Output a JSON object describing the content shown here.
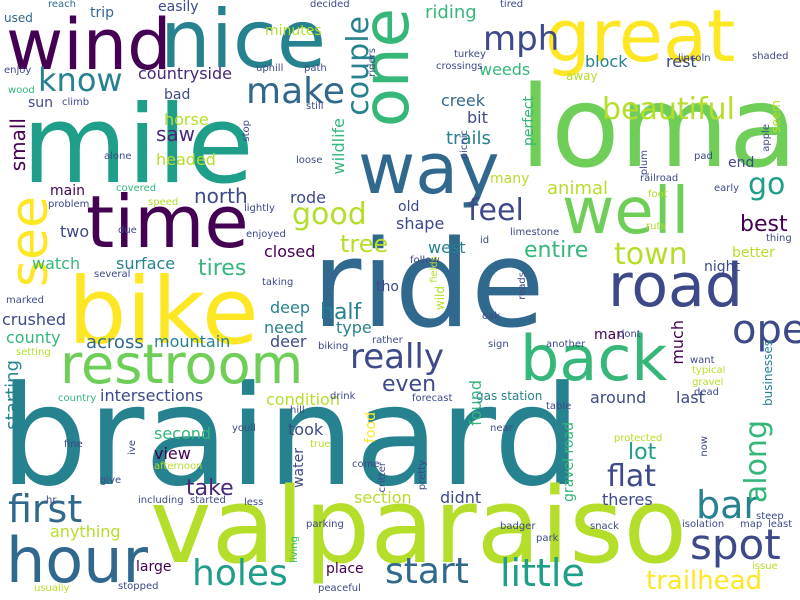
{
  "palette": [
    "#440154",
    "#482878",
    "#3e4989",
    "#31688e",
    "#26828e",
    "#1f9e89",
    "#35b779",
    "#6ece58",
    "#b5de2b",
    "#fde725"
  ],
  "words": [
    {
      "text": "brainard",
      "color": "#26828e"
    },
    {
      "text": "ride",
      "color": "#31688e"
    },
    {
      "text": "mile",
      "color": "#1f9e89"
    },
    {
      "text": "loma",
      "color": "#6ece58"
    },
    {
      "text": "valparaiso",
      "color": "#b5de2b"
    },
    {
      "text": "bike",
      "color": "#fde725"
    },
    {
      "text": "wind",
      "color": "#440154"
    },
    {
      "text": "nice",
      "color": "#26828e"
    },
    {
      "text": "great",
      "color": "#fde725"
    },
    {
      "text": "one",
      "color": "#35b779"
    },
    {
      "text": "time",
      "color": "#440154"
    },
    {
      "text": "well",
      "color": "#6ece58"
    },
    {
      "text": "way",
      "color": "#31688e"
    },
    {
      "text": "road",
      "color": "#3e4989"
    },
    {
      "text": "back",
      "color": "#35b779"
    },
    {
      "text": "restroom",
      "color": "#6ece58"
    },
    {
      "text": "hour",
      "color": "#31688e"
    },
    {
      "text": "see",
      "color": "#fde725"
    },
    {
      "text": "spot",
      "color": "#3e4989"
    },
    {
      "text": "open",
      "color": "#3e4989"
    },
    {
      "text": "bar",
      "color": "#26828e"
    },
    {
      "text": "first",
      "color": "#31688e"
    },
    {
      "text": "little",
      "color": "#1f9e89"
    },
    {
      "text": "start",
      "color": "#31688e"
    },
    {
      "text": "holes",
      "color": "#1f9e89"
    },
    {
      "text": "trailhead",
      "color": "#fde725"
    },
    {
      "text": "really",
      "color": "#3e4989"
    },
    {
      "text": "make",
      "color": "#31688e"
    },
    {
      "text": "know",
      "color": "#26828e"
    },
    {
      "text": "mph",
      "color": "#3e4989"
    },
    {
      "text": "couple",
      "color": "#26828e"
    },
    {
      "text": "beautiful",
      "color": "#b5de2b"
    },
    {
      "text": "good",
      "color": "#b5de2b"
    },
    {
      "text": "feel",
      "color": "#3e4989"
    },
    {
      "text": "go",
      "color": "#1f9e89"
    },
    {
      "text": "town",
      "color": "#b5de2b"
    },
    {
      "text": "along",
      "color": "#35b779"
    },
    {
      "text": "flat",
      "color": "#3e4989"
    },
    {
      "text": "lot",
      "color": "#1f9e89"
    },
    {
      "text": "take",
      "color": "#482878"
    },
    {
      "text": "tree",
      "color": "#b5de2b"
    },
    {
      "text": "entire",
      "color": "#35b779"
    },
    {
      "text": "tires",
      "color": "#35b779"
    },
    {
      "text": "north",
      "color": "#3e4989"
    },
    {
      "text": "animal",
      "color": "#b5de2b"
    },
    {
      "text": "best",
      "color": "#440154"
    },
    {
      "text": "half",
      "color": "#26828e"
    },
    {
      "text": "even",
      "color": "#3e4989"
    },
    {
      "text": "saw",
      "color": "#482878"
    },
    {
      "text": "small",
      "color": "#440154"
    },
    {
      "text": "restroom",
      "color": "#fde725",
      "hidden": true
    },
    {
      "text": "countryside",
      "color": "#482878"
    },
    {
      "text": "riding",
      "color": "#35b779"
    },
    {
      "text": "block",
      "color": "#26828e"
    },
    {
      "text": "rest",
      "color": "#3e4989"
    },
    {
      "text": "weeds",
      "color": "#35b779"
    },
    {
      "text": "creek",
      "color": "#31688e"
    },
    {
      "text": "bit",
      "color": "#3e4989"
    },
    {
      "text": "trails",
      "color": "#26828e"
    },
    {
      "text": "perfect",
      "color": "#35b779"
    },
    {
      "text": "many",
      "color": "#b5de2b"
    },
    {
      "text": "wildlife",
      "color": "#35b779"
    },
    {
      "text": "rode",
      "color": "#3e4989"
    },
    {
      "text": "main",
      "color": "#440154"
    },
    {
      "text": "two",
      "color": "#3e4989"
    },
    {
      "text": "old",
      "color": "#3e4989"
    },
    {
      "text": "shape",
      "color": "#3e4989"
    },
    {
      "text": "west",
      "color": "#26828e"
    },
    {
      "text": "closed",
      "color": "#440154"
    },
    {
      "text": "watch",
      "color": "#35b779"
    },
    {
      "text": "surface",
      "color": "#26828e"
    },
    {
      "text": "tho",
      "color": "#3e4989"
    },
    {
      "text": "type",
      "color": "#26828e"
    },
    {
      "text": "crushed",
      "color": "#3e4989"
    },
    {
      "text": "deep",
      "color": "#26828e"
    },
    {
      "text": "need",
      "color": "#26828e"
    },
    {
      "text": "mountain",
      "color": "#26828e"
    },
    {
      "text": "deer",
      "color": "#3e4989"
    },
    {
      "text": "across",
      "color": "#31688e"
    },
    {
      "text": "county",
      "color": "#35b779"
    },
    {
      "text": "starting",
      "color": "#26828e"
    },
    {
      "text": "intersections",
      "color": "#3e4989"
    },
    {
      "text": "condition",
      "color": "#b5de2b"
    },
    {
      "text": "found",
      "color": "#35b779"
    },
    {
      "text": "around",
      "color": "#3e4989"
    },
    {
      "text": "last",
      "color": "#3e4989"
    },
    {
      "text": "second",
      "color": "#35b779"
    },
    {
      "text": "took",
      "color": "#3e4989"
    },
    {
      "text": "view",
      "color": "#440154"
    },
    {
      "text": "water",
      "color": "#3e4989"
    },
    {
      "text": "food",
      "color": "#fde725"
    },
    {
      "text": "gravel road",
      "color": "#35b779"
    },
    {
      "text": "section",
      "color": "#b5de2b"
    },
    {
      "text": "didnt",
      "color": "#3e4989"
    },
    {
      "text": "theres",
      "color": "#3e4989"
    },
    {
      "text": "anything",
      "color": "#b5de2b"
    },
    {
      "text": "large",
      "color": "#440154"
    },
    {
      "text": "place",
      "color": "#440154"
    },
    {
      "text": "horse",
      "color": "#b5de2b"
    },
    {
      "text": "headed",
      "color": "#b5de2b"
    },
    {
      "text": "bad",
      "color": "#3e4989"
    },
    {
      "text": "sun",
      "color": "#3e4989"
    },
    {
      "text": "trip",
      "color": "#31688e"
    },
    {
      "text": "easily",
      "color": "#3e4989"
    },
    {
      "text": "minutes",
      "color": "#b5de2b"
    },
    {
      "text": "used",
      "color": "#31688e"
    },
    {
      "text": "much",
      "color": "#440154"
    },
    {
      "text": "man",
      "color": "#440154"
    },
    {
      "text": "night",
      "color": "#3e4989"
    },
    {
      "text": "better",
      "color": "#b5de2b"
    },
    {
      "text": "end",
      "color": "#3e4989"
    },
    {
      "text": "businesses",
      "color": "#26828e"
    },
    {
      "text": "seem",
      "color": "#b5de2b"
    },
    {
      "text": "away",
      "color": "#b5de2b"
    },
    {
      "text": "gas station",
      "color": "#26828e"
    },
    {
      "text": "lincoln",
      "color": "#3e4989"
    },
    {
      "text": "shaded",
      "color": "#3e4989"
    },
    {
      "text": "reach",
      "color": "#31688e"
    },
    {
      "text": "decided",
      "color": "#3e4989"
    },
    {
      "text": "tired",
      "color": "#3e4989"
    },
    {
      "text": "enjoy",
      "color": "#3e4989"
    },
    {
      "text": "uphill",
      "color": "#3e4989"
    },
    {
      "text": "path",
      "color": "#3e4989"
    },
    {
      "text": "turkey",
      "color": "#3e4989"
    },
    {
      "text": "crossings",
      "color": "#3e4989"
    },
    {
      "text": "wood",
      "color": "#35b779"
    },
    {
      "text": "climb",
      "color": "#3e4989"
    },
    {
      "text": "still",
      "color": "#3e4989"
    },
    {
      "text": "riders",
      "color": "#3e4989"
    },
    {
      "text": "stop",
      "color": "#3e4989"
    },
    {
      "text": "alone",
      "color": "#3e4989"
    },
    {
      "text": "covered",
      "color": "#35b779"
    },
    {
      "text": "problem",
      "color": "#3e4989"
    },
    {
      "text": "speed",
      "color": "#b5de2b"
    },
    {
      "text": "lightly",
      "color": "#3e4989"
    },
    {
      "text": "due",
      "color": "#3e4989"
    },
    {
      "text": "enjoyed",
      "color": "#3e4989"
    },
    {
      "text": "several",
      "color": "#3e4989"
    },
    {
      "text": "taking",
      "color": "#3e4989"
    },
    {
      "text": "marked",
      "color": "#3e4989"
    },
    {
      "text": "setting",
      "color": "#b5de2b"
    },
    {
      "text": "country",
      "color": "#35b779"
    },
    {
      "text": "fine",
      "color": "#3e4989"
    },
    {
      "text": "ive",
      "color": "#3e4989"
    },
    {
      "text": "give",
      "color": "#3e4989"
    },
    {
      "text": "afternoon",
      "color": "#b5de2b"
    },
    {
      "text": "hr",
      "color": "#3e4989"
    },
    {
      "text": "including",
      "color": "#3e4989"
    },
    {
      "text": "started",
      "color": "#3e4989"
    },
    {
      "text": "less",
      "color": "#3e4989"
    },
    {
      "text": "usually",
      "color": "#b5de2b"
    },
    {
      "text": "stopped",
      "color": "#3e4989"
    },
    {
      "text": "peaceful",
      "color": "#3e4989"
    },
    {
      "text": "youll",
      "color": "#3e4989"
    },
    {
      "text": "true",
      "color": "#b5de2b"
    },
    {
      "text": "hill",
      "color": "#3e4989"
    },
    {
      "text": "biking",
      "color": "#3e4989"
    },
    {
      "text": "drink",
      "color": "#3e4989"
    },
    {
      "text": "living",
      "color": "#35b779"
    },
    {
      "text": "parking",
      "color": "#3e4989"
    },
    {
      "text": "come",
      "color": "#3e4989"
    },
    {
      "text": "critter",
      "color": "#3e4989"
    },
    {
      "text": "pretty",
      "color": "#3e4989"
    },
    {
      "text": "near",
      "color": "#3e4989"
    },
    {
      "text": "forecast",
      "color": "#3e4989"
    },
    {
      "text": "badger",
      "color": "#3e4989"
    },
    {
      "text": "park",
      "color": "#3e4989"
    },
    {
      "text": "snack",
      "color": "#3e4989"
    },
    {
      "text": "isolation",
      "color": "#3e4989"
    },
    {
      "text": "map",
      "color": "#3e4989"
    },
    {
      "text": "steep",
      "color": "#3e4989"
    },
    {
      "text": "least",
      "color": "#3e4989"
    },
    {
      "text": "issue",
      "color": "#b5de2b"
    },
    {
      "text": "protected",
      "color": "#b5de2b"
    },
    {
      "text": "now",
      "color": "#3e4989"
    },
    {
      "text": "gravel",
      "color": "#b5de2b"
    },
    {
      "text": "dead",
      "color": "#3e4989"
    },
    {
      "text": "table",
      "color": "#3e4989"
    },
    {
      "text": "typical",
      "color": "#b5de2b"
    },
    {
      "text": "want",
      "color": "#3e4989"
    },
    {
      "text": "dont",
      "color": "#3e4989"
    },
    {
      "text": "another",
      "color": "#3e4989"
    },
    {
      "text": "sign",
      "color": "#3e4989"
    },
    {
      "text": "rather",
      "color": "#3e4989"
    },
    {
      "text": "oak",
      "color": "#3e4989"
    },
    {
      "text": "reads",
      "color": "#3e4989"
    },
    {
      "text": "wild",
      "color": "#b5de2b"
    },
    {
      "text": "follow",
      "color": "#3e4989"
    },
    {
      "text": "fields",
      "color": "#b5de2b"
    },
    {
      "text": "id",
      "color": "#3e4989"
    },
    {
      "text": "limestone",
      "color": "#3e4989"
    },
    {
      "text": "picnic",
      "color": "#3e4989"
    },
    {
      "text": "loose",
      "color": "#3e4989"
    },
    {
      "text": "railroad",
      "color": "#3e4989"
    },
    {
      "text": "plum",
      "color": "#3e4989"
    },
    {
      "text": "foot",
      "color": "#b5de2b"
    },
    {
      "text": "ruts",
      "color": "#b5de2b"
    },
    {
      "text": "early",
      "color": "#3e4989"
    },
    {
      "text": "pad",
      "color": "#3e4989"
    },
    {
      "text": "apple",
      "color": "#3e4989"
    },
    {
      "text": "thing",
      "color": "#3e4989"
    }
  ]
}
